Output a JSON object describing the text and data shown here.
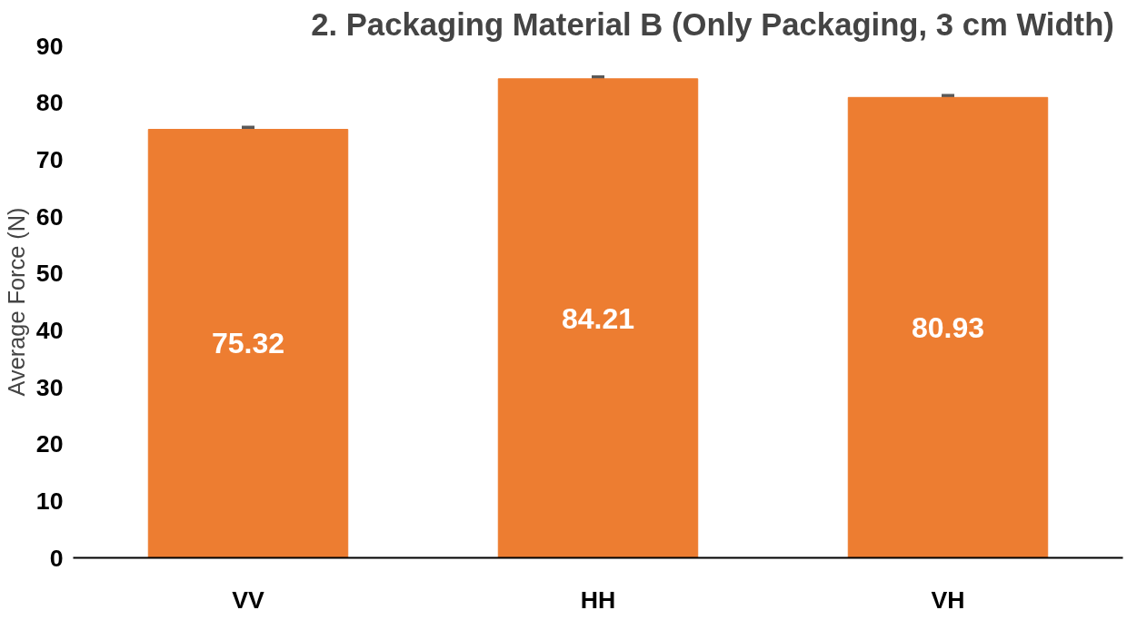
{
  "chart_data": {
    "type": "bar",
    "title": "2. Packaging Material B  (Only Packaging, 3 cm Width)",
    "ylabel": "Average Force (N)",
    "categories": [
      "VV",
      "HH",
      "VH"
    ],
    "values": [
      75.32,
      84.21,
      80.93
    ],
    "errors": [
      0.3,
      0.3,
      0.3
    ],
    "color": "#ed7d31",
    "ylim": [
      0,
      90
    ],
    "yticks": [
      0,
      10,
      20,
      30,
      40,
      50,
      60,
      70,
      80,
      90
    ],
    "grid": false,
    "data_labels": true
  }
}
